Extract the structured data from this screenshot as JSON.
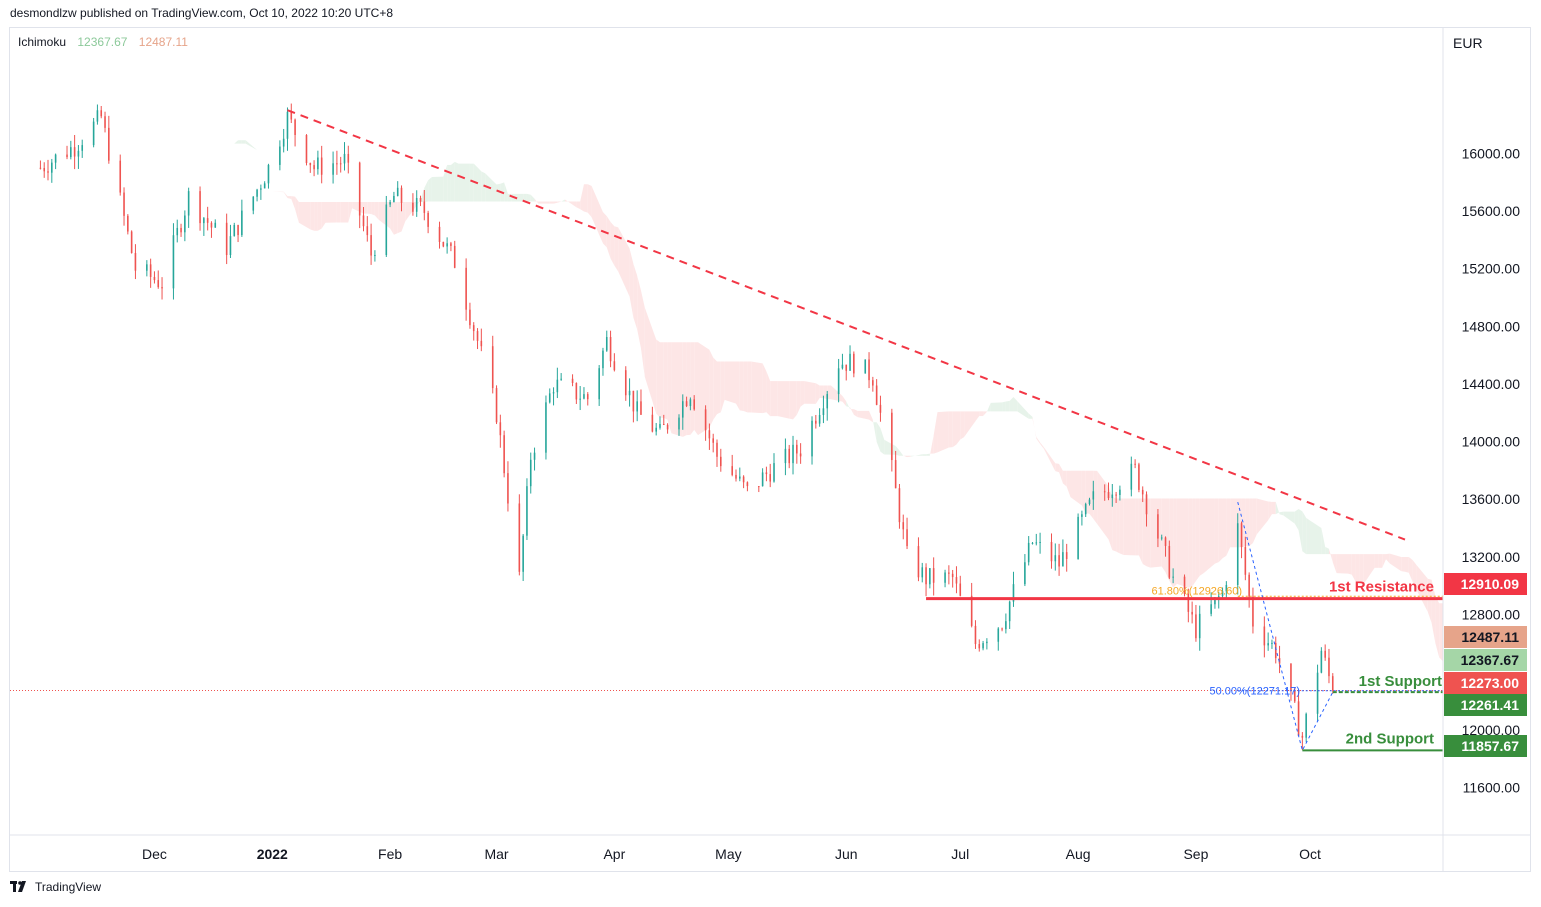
{
  "header": {
    "published": "desmondlzw published on TradingView.com, Oct 10, 2022 10:20 UTC+8"
  },
  "legend": {
    "indicator": "Ichimoku",
    "value1": "12367.67",
    "value2": "12487.11"
  },
  "price_axis": {
    "currency": "EUR"
  },
  "footer": {
    "brand": "TradingView"
  },
  "colors": {
    "up": "#26a69a",
    "down": "#ef5350",
    "trendline": "#f23645",
    "resistance": "#f23645",
    "support": "#388e3c",
    "kumo_bull": "#e7f3ea",
    "kumo_bear": "#fde6e6"
  },
  "chart_data": {
    "type": "candlestick",
    "y_ticks": [
      "16000.00",
      "15600.00",
      "15200.00",
      "14800.00",
      "14400.00",
      "14000.00",
      "13600.00",
      "13200.00",
      "12800.00",
      "12000.00",
      "11600.00"
    ],
    "x_ticks": [
      "Dec",
      "2022",
      "Feb",
      "Mar",
      "Apr",
      "May",
      "Jun",
      "Jul",
      "Aug",
      "Sep",
      "Oct"
    ],
    "ylim": [
      11270,
      16870
    ],
    "price_labels": [
      {
        "text": "12910.09",
        "value": 12910.09,
        "color": "#f23645"
      },
      {
        "text": "12487.11",
        "value": 12487.11,
        "color": "#e6a48a"
      },
      {
        "text": "12367.67",
        "value": 12367.67,
        "color": "#a5d6a7"
      },
      {
        "text": "12273.00",
        "value": 12273.0,
        "color": "#ef5350"
      },
      {
        "text": "12261.41",
        "value": 12261.41,
        "color": "#388e3c"
      },
      {
        "text": "11857.67",
        "value": 11857.67,
        "color": "#388e3c"
      }
    ],
    "annotations": [
      {
        "text": "1st Resistance",
        "value": 12910.09,
        "color": "#f23645"
      },
      {
        "text": "1st Support",
        "value": 12261.41,
        "color": "#388e3c"
      },
      {
        "text": "2nd Support",
        "value": 11857.67,
        "color": "#388e3c"
      },
      {
        "text": "61.80%(12926.60)",
        "value": 12926.6,
        "color": "#f5a623"
      },
      {
        "text": "50.00%(12271.17)",
        "value": 12271.17,
        "color": "#2962ff"
      }
    ],
    "trendline": {
      "style": "dashed",
      "from": {
        "date": "2022-01-05",
        "value": 16300
      },
      "to": {
        "date": "2022-10-26",
        "value": 13320
      }
    },
    "close_path": [
      [
        "2021-11-01",
        15900
      ],
      [
        "2021-11-10",
        16050
      ],
      [
        "2021-11-17",
        16250
      ],
      [
        "2021-11-26",
        15200
      ],
      [
        "2021-12-03",
        15100
      ],
      [
        "2021-12-10",
        15700
      ],
      [
        "2021-12-20",
        15350
      ],
      [
        "2021-12-31",
        15900
      ],
      [
        "2022-01-05",
        16250
      ],
      [
        "2022-01-12",
        15900
      ],
      [
        "2022-01-20",
        15950
      ],
      [
        "2022-01-27",
        15300
      ],
      [
        "2022-02-02",
        15700
      ],
      [
        "2022-02-10",
        15600
      ],
      [
        "2022-02-18",
        15250
      ],
      [
        "2022-02-24",
        14700
      ],
      [
        "2022-03-01",
        14200
      ],
      [
        "2022-03-07",
        13050
      ],
      [
        "2022-03-10",
        13900
      ],
      [
        "2022-03-16",
        14400
      ],
      [
        "2022-03-25",
        14300
      ],
      [
        "2022-03-30",
        14700
      ],
      [
        "2022-04-07",
        14200
      ],
      [
        "2022-04-13",
        14050
      ],
      [
        "2022-04-21",
        14350
      ],
      [
        "2022-04-28",
        13900
      ],
      [
        "2022-05-06",
        13650
      ],
      [
        "2022-05-12",
        13800
      ],
      [
        "2022-05-20",
        13950
      ],
      [
        "2022-05-30",
        14550
      ],
      [
        "2022-06-03",
        14550
      ],
      [
        "2022-06-08",
        14450
      ],
      [
        "2022-06-13",
        13800
      ],
      [
        "2022-06-17",
        13200
      ],
      [
        "2022-06-22",
        13050
      ],
      [
        "2022-06-29",
        13050
      ],
      [
        "2022-07-05",
        12600
      ],
      [
        "2022-07-12",
        12750
      ],
      [
        "2022-07-20",
        13300
      ],
      [
        "2022-07-27",
        13150
      ],
      [
        "2022-08-05",
        13600
      ],
      [
        "2022-08-16",
        13800
      ],
      [
        "2022-08-26",
        13050
      ],
      [
        "2022-09-01",
        12700
      ],
      [
        "2022-09-08",
        12950
      ],
      [
        "2022-09-12",
        13400
      ],
      [
        "2022-09-16",
        12750
      ],
      [
        "2022-09-22",
        12550
      ],
      [
        "2022-09-29",
        11950
      ],
      [
        "2022-10-04",
        12550
      ],
      [
        "2022-10-07",
        12273
      ]
    ]
  }
}
